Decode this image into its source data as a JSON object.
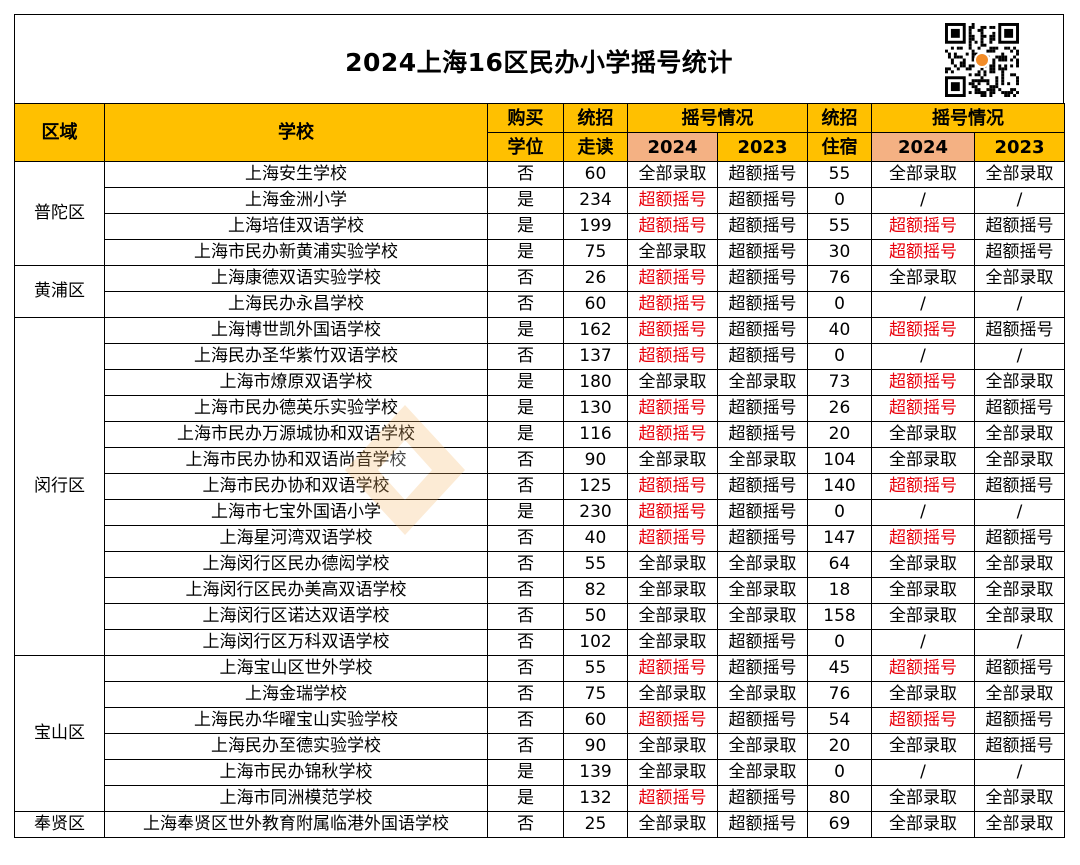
{
  "title": "2024上海16区民办小学摇号统计",
  "header": {
    "district": "区域",
    "school": "学校",
    "buy_seat_1": "购买",
    "buy_seat_2": "学位",
    "day_quota_1": "统招",
    "day_quota_2": "走读",
    "lottery_day": "摇号情况",
    "year_2024": "2024",
    "year_2023": "2023",
    "board_quota_1": "统招",
    "board_quota_2": "住宿",
    "lottery_board": "摇号情况",
    "year_2024_b": "2024",
    "year_2023_b": "2023"
  },
  "colors": {
    "header_fill": "#ffc000",
    "year_fill": "#f4b183",
    "oversubscribed_text": "#e8000b",
    "watermark": "#f6b86a"
  },
  "groups": [
    {
      "district": "普陀区",
      "rows": [
        {
          "school": "上海安生学校",
          "buy": "否",
          "day": "60",
          "d24": "全部录取",
          "d23": "超额摇号",
          "board": "55",
          "b24": "全部录取",
          "b23": "全部录取"
        },
        {
          "school": "上海金洲小学",
          "buy": "是",
          "day": "234",
          "d24": "超额摇号",
          "d23": "超额摇号",
          "board": "0",
          "b24": "/",
          "b23": "/"
        },
        {
          "school": "上海培佳双语学校",
          "buy": "是",
          "day": "199",
          "d24": "超额摇号",
          "d23": "超额摇号",
          "board": "55",
          "b24": "超额摇号",
          "b23": "超额摇号"
        },
        {
          "school": "上海市民办新黄浦实验学校",
          "buy": "是",
          "day": "75",
          "d24": "全部录取",
          "d23": "超额摇号",
          "board": "30",
          "b24": "超额摇号",
          "b23": "超额摇号"
        }
      ]
    },
    {
      "district": "黄浦区",
      "rows": [
        {
          "school": "上海康德双语实验学校",
          "buy": "否",
          "day": "26",
          "d24": "超额摇号",
          "d23": "超额摇号",
          "board": "76",
          "b24": "全部录取",
          "b23": "全部录取"
        },
        {
          "school": "上海民办永昌学校",
          "buy": "否",
          "day": "60",
          "d24": "超额摇号",
          "d23": "超额摇号",
          "board": "0",
          "b24": "/",
          "b23": "/"
        }
      ]
    },
    {
      "district": "闵行区",
      "rows": [
        {
          "school": "上海博世凯外国语学校",
          "buy": "是",
          "day": "162",
          "d24": "超额摇号",
          "d23": "超额摇号",
          "board": "40",
          "b24": "超额摇号",
          "b23": "超额摇号"
        },
        {
          "school": "上海民办圣华紫竹双语学校",
          "buy": "否",
          "day": "137",
          "d24": "超额摇号",
          "d23": "超额摇号",
          "board": "0",
          "b24": "/",
          "b23": "/"
        },
        {
          "school": "上海市燎原双语学校",
          "buy": "是",
          "day": "180",
          "d24": "全部录取",
          "d23": "全部录取",
          "board": "73",
          "b24": "超额摇号",
          "b23": "全部录取"
        },
        {
          "school": "上海市民办德英乐实验学校",
          "buy": "是",
          "day": "130",
          "d24": "超额摇号",
          "d23": "超额摇号",
          "board": "26",
          "b24": "超额摇号",
          "b23": "超额摇号"
        },
        {
          "school": "上海市民办万源城协和双语学校",
          "buy": "是",
          "day": "116",
          "d24": "超额摇号",
          "d23": "超额摇号",
          "board": "20",
          "b24": "全部录取",
          "b23": "全部录取"
        },
        {
          "school": "上海市民办协和双语尚音学校",
          "buy": "否",
          "day": "90",
          "d24": "全部录取",
          "d23": "全部录取",
          "board": "104",
          "b24": "全部录取",
          "b23": "全部录取"
        },
        {
          "school": "上海市民办协和双语学校",
          "buy": "否",
          "day": "125",
          "d24": "超额摇号",
          "d23": "超额摇号",
          "board": "140",
          "b24": "超额摇号",
          "b23": "超额摇号"
        },
        {
          "school": "上海市七宝外国语小学",
          "buy": "是",
          "day": "230",
          "d24": "超额摇号",
          "d23": "超额摇号",
          "board": "0",
          "b24": "/",
          "b23": "/"
        },
        {
          "school": "上海星河湾双语学校",
          "buy": "否",
          "day": "40",
          "d24": "超额摇号",
          "d23": "超额摇号",
          "board": "147",
          "b24": "超额摇号",
          "b23": "超额摇号"
        },
        {
          "school": "上海闵行区民办德闳学校",
          "buy": "否",
          "day": "55",
          "d24": "全部录取",
          "d23": "全部录取",
          "board": "64",
          "b24": "全部录取",
          "b23": "全部录取"
        },
        {
          "school": "上海闵行区民办美高双语学校",
          "buy": "否",
          "day": "82",
          "d24": "全部录取",
          "d23": "全部录取",
          "board": "18",
          "b24": "全部录取",
          "b23": "全部录取"
        },
        {
          "school": "上海闵行区诺达双语学校",
          "buy": "否",
          "day": "50",
          "d24": "全部录取",
          "d23": "全部录取",
          "board": "158",
          "b24": "全部录取",
          "b23": "全部录取"
        },
        {
          "school": "上海闵行区万科双语学校",
          "buy": "否",
          "day": "102",
          "d24": "全部录取",
          "d23": "超额摇号",
          "board": "0",
          "b24": "/",
          "b23": "/"
        }
      ]
    },
    {
      "district": "宝山区",
      "rows": [
        {
          "school": "上海宝山区世外学校",
          "buy": "否",
          "day": "55",
          "d24": "超额摇号",
          "d23": "超额摇号",
          "board": "45",
          "b24": "超额摇号",
          "b23": "超额摇号"
        },
        {
          "school": "上海金瑞学校",
          "buy": "否",
          "day": "75",
          "d24": "全部录取",
          "d23": "全部录取",
          "board": "76",
          "b24": "全部录取",
          "b23": "全部录取"
        },
        {
          "school": "上海民办华曜宝山实验学校",
          "buy": "否",
          "day": "60",
          "d24": "超额摇号",
          "d23": "超额摇号",
          "board": "54",
          "b24": "超额摇号",
          "b23": "超额摇号"
        },
        {
          "school": "上海民办至德实验学校",
          "buy": "否",
          "day": "90",
          "d24": "全部录取",
          "d23": "全部录取",
          "board": "20",
          "b24": "全部录取",
          "b23": "超额摇号"
        },
        {
          "school": "上海市民办锦秋学校",
          "buy": "是",
          "day": "139",
          "d24": "全部录取",
          "d23": "全部录取",
          "board": "0",
          "b24": "/",
          "b23": "/"
        },
        {
          "school": "上海市同洲模范学校",
          "buy": "是",
          "day": "132",
          "d24": "超额摇号",
          "d23": "超额摇号",
          "board": "80",
          "b24": "全部录取",
          "b23": "全部录取"
        }
      ]
    },
    {
      "district": "奉贤区",
      "rows": [
        {
          "school": "上海奉贤区世外教育附属临港外国语学校",
          "buy": "否",
          "day": "25",
          "d24": "全部录取",
          "d23": "超额摇号",
          "board": "69",
          "b24": "全部录取",
          "b23": "全部录取"
        }
      ]
    }
  ]
}
